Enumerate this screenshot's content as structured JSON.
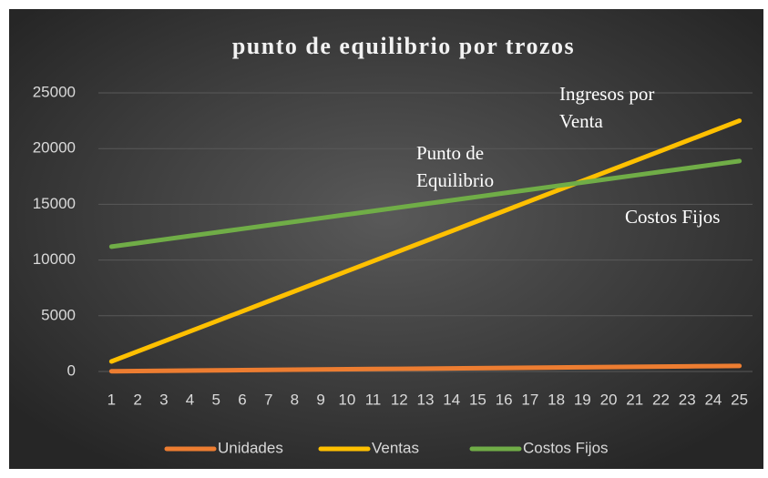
{
  "chart_data": {
    "type": "line",
    "title": "punto de equilibrio por trozos",
    "categories": [
      "1",
      "2",
      "3",
      "4",
      "5",
      "6",
      "7",
      "8",
      "9",
      "10",
      "11",
      "12",
      "13",
      "14",
      "15",
      "16",
      "17",
      "18",
      "19",
      "20",
      "21",
      "22",
      "23",
      "24",
      "25"
    ],
    "series": [
      {
        "name": "Unidades",
        "color": "#ed7d31",
        "values": [
          20,
          40,
          60,
          80,
          100,
          120,
          140,
          160,
          180,
          200,
          220,
          240,
          260,
          280,
          300,
          320,
          340,
          360,
          380,
          400,
          420,
          440,
          460,
          480,
          500
        ]
      },
      {
        "name": "Ventas",
        "color": "#ffc000",
        "values": [
          900,
          1800,
          2700,
          3600,
          4500,
          5400,
          6300,
          7200,
          8100,
          9000,
          9900,
          10800,
          11700,
          12600,
          13500,
          14400,
          15300,
          16200,
          17100,
          18000,
          18900,
          19800,
          20700,
          21600,
          22500
        ]
      },
      {
        "name": "Costos Fijos",
        "color": "#70ad47",
        "values": [
          11200,
          11520,
          11840,
          12160,
          12480,
          12800,
          13120,
          13440,
          13760,
          14080,
          14400,
          14720,
          15040,
          15360,
          15680,
          16000,
          16320,
          16640,
          16960,
          17280,
          17600,
          17920,
          18240,
          18560,
          18880
        ]
      }
    ],
    "annotations": [
      [
        "Ingresos por",
        "Venta"
      ],
      [
        "Punto de",
        "Equilibrio"
      ],
      [
        "Costos Fijos"
      ]
    ],
    "ylim": [
      0,
      25000
    ],
    "yticks": [
      0,
      5000,
      10000,
      15000,
      20000,
      25000
    ],
    "grid": true,
    "legend": "bottom"
  }
}
